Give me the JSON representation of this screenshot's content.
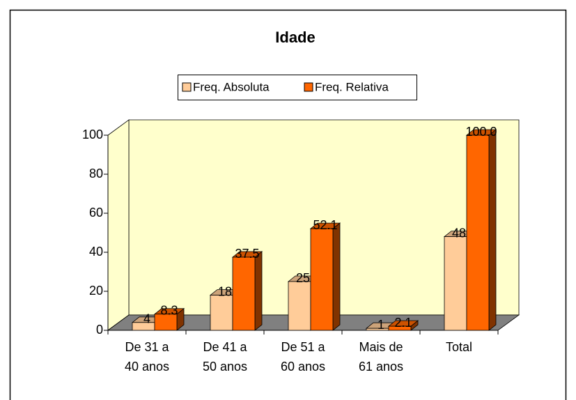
{
  "chart_data": {
    "type": "bar3d",
    "title": "Idade",
    "categories": [
      "De 31 a 40 anos",
      "De 41 a 50 anos",
      "De 51 a 60 anos",
      "Mais de 61 anos",
      "Total"
    ],
    "series": [
      {
        "name": "Freq. Absoluta",
        "color": "#ffcc99",
        "values": [
          4,
          18,
          25,
          1,
          48
        ]
      },
      {
        "name": "Freq. Relativa",
        "color": "#ff6600",
        "values": [
          8.3,
          37.5,
          52.1,
          2.1,
          100.0
        ],
        "value_labels": [
          "8.3",
          "37.5",
          "52.1",
          "2.1",
          "100.0"
        ]
      }
    ],
    "ylim": [
      0,
      100
    ],
    "yticks": [
      0,
      20,
      40,
      60,
      80,
      100
    ],
    "legend": "top"
  }
}
